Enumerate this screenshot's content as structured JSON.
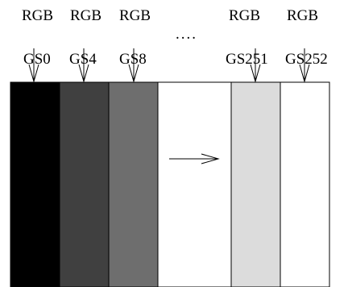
{
  "columns": [
    {
      "rgb": "RGB",
      "gs": "GS0",
      "color": "#000000"
    },
    {
      "rgb": "RGB",
      "gs": "GS4",
      "color": "#404040"
    },
    {
      "rgb": "RGB",
      "gs": "GS8",
      "color": "#6e6e6e"
    },
    {
      "rgb": "",
      "gs": "",
      "color": "#ffffff"
    },
    {
      "rgb": "RGB",
      "gs": "GS251",
      "color": "#dcdcdc"
    },
    {
      "rgb": "RGB",
      "gs": "GS252",
      "color": "#ffffff"
    }
  ],
  "ellipsis": "....",
  "arrow": "right-arrow",
  "colors": {
    "stroke": "#000000",
    "background": "#ffffff"
  }
}
